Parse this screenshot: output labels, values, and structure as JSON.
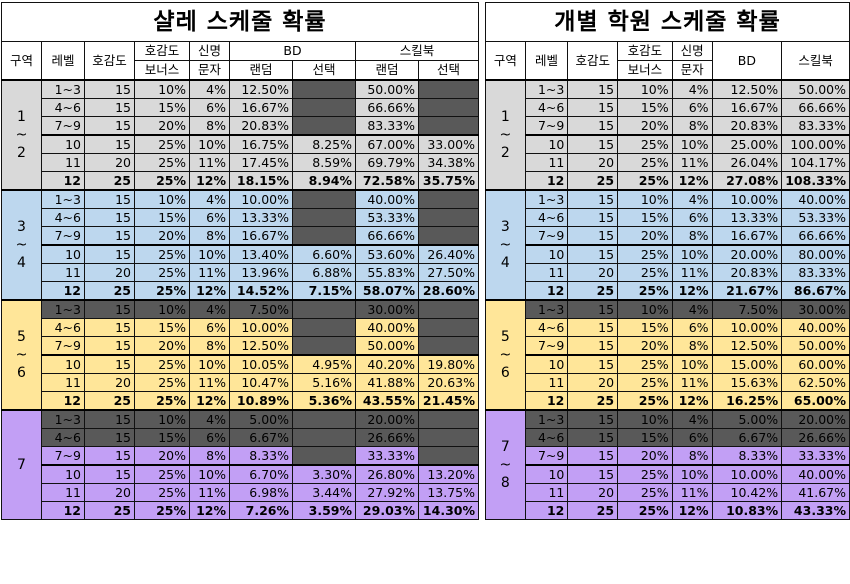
{
  "left": {
    "title": "샬레 스케줄 확률",
    "headers": {
      "zone": "구역",
      "level": "레벨",
      "affinity": "호감도",
      "bonus_top": "호감도",
      "bonus_bottom": "보너스",
      "msg_top": "신명",
      "msg_bottom": "문자",
      "bd": "BD",
      "skillbook": "스킬북",
      "random": "랜덤",
      "select": "선택",
      "random2": "랜덤",
      "select2": "선택"
    },
    "zones": [
      "1\n~\n2",
      "3\n~\n4",
      "5\n~\n6",
      "7"
    ],
    "rows": [
      [
        "1~3",
        "15",
        "10%",
        "4%",
        "12.50%",
        "",
        "50.00%",
        ""
      ],
      [
        "4~6",
        "15",
        "15%",
        "6%",
        "16.67%",
        "",
        "66.66%",
        ""
      ],
      [
        "7~9",
        "15",
        "20%",
        "8%",
        "20.83%",
        "",
        "83.33%",
        ""
      ],
      [
        "10",
        "15",
        "25%",
        "10%",
        "16.75%",
        "8.25%",
        "67.00%",
        "33.00%"
      ],
      [
        "11",
        "20",
        "25%",
        "11%",
        "17.45%",
        "8.59%",
        "69.79%",
        "34.38%"
      ],
      [
        "12",
        "25",
        "25%",
        "12%",
        "18.15%",
        "8.94%",
        "72.58%",
        "35.75%"
      ],
      [
        "1~3",
        "15",
        "10%",
        "4%",
        "10.00%",
        "",
        "40.00%",
        ""
      ],
      [
        "4~6",
        "15",
        "15%",
        "6%",
        "13.33%",
        "",
        "53.33%",
        ""
      ],
      [
        "7~9",
        "15",
        "20%",
        "8%",
        "16.67%",
        "",
        "66.66%",
        ""
      ],
      [
        "10",
        "15",
        "25%",
        "10%",
        "13.40%",
        "6.60%",
        "53.60%",
        "26.40%"
      ],
      [
        "11",
        "20",
        "25%",
        "11%",
        "13.96%",
        "6.88%",
        "55.83%",
        "27.50%"
      ],
      [
        "12",
        "25",
        "25%",
        "12%",
        "14.52%",
        "7.15%",
        "58.07%",
        "28.60%"
      ],
      [
        "1~3",
        "15",
        "10%",
        "4%",
        "7.50%",
        "",
        "30.00%",
        ""
      ],
      [
        "4~6",
        "15",
        "15%",
        "6%",
        "10.00%",
        "",
        "40.00%",
        ""
      ],
      [
        "7~9",
        "15",
        "20%",
        "8%",
        "12.50%",
        "",
        "50.00%",
        ""
      ],
      [
        "10",
        "15",
        "25%",
        "10%",
        "10.05%",
        "4.95%",
        "40.20%",
        "19.80%"
      ],
      [
        "11",
        "20",
        "25%",
        "11%",
        "10.47%",
        "5.16%",
        "41.88%",
        "20.63%"
      ],
      [
        "12",
        "25",
        "25%",
        "12%",
        "10.89%",
        "5.36%",
        "43.55%",
        "21.45%"
      ],
      [
        "1~3",
        "15",
        "10%",
        "4%",
        "5.00%",
        "",
        "20.00%",
        ""
      ],
      [
        "4~6",
        "15",
        "15%",
        "6%",
        "6.67%",
        "",
        "26.66%",
        ""
      ],
      [
        "7~9",
        "15",
        "20%",
        "8%",
        "8.33%",
        "",
        "33.33%",
        ""
      ],
      [
        "10",
        "15",
        "25%",
        "10%",
        "6.70%",
        "3.30%",
        "26.80%",
        "13.20%"
      ],
      [
        "11",
        "20",
        "25%",
        "11%",
        "6.98%",
        "3.44%",
        "27.92%",
        "13.75%"
      ],
      [
        "12",
        "25",
        "25%",
        "12%",
        "7.26%",
        "3.59%",
        "29.03%",
        "14.30%"
      ]
    ]
  },
  "right": {
    "title": "개별 학원 스케줄 확률",
    "headers": {
      "zone": "구역",
      "level": "레벨",
      "affinity": "호감도",
      "bonus_top": "호감도",
      "bonus_bottom": "보너스",
      "msg_top": "신명",
      "msg_bottom": "문자",
      "bd": "BD",
      "skillbook": "스킬북"
    },
    "zones": [
      "1\n~\n2",
      "3\n~\n4",
      "5\n~\n6",
      "7\n~\n8"
    ],
    "rows": [
      [
        "1~3",
        "15",
        "10%",
        "4%",
        "12.50%",
        "50.00%"
      ],
      [
        "4~6",
        "15",
        "15%",
        "6%",
        "16.67%",
        "66.66%"
      ],
      [
        "7~9",
        "15",
        "20%",
        "8%",
        "20.83%",
        "83.33%"
      ],
      [
        "10",
        "15",
        "25%",
        "10%",
        "25.00%",
        "100.00%"
      ],
      [
        "11",
        "20",
        "25%",
        "11%",
        "26.04%",
        "104.17%"
      ],
      [
        "12",
        "25",
        "25%",
        "12%",
        "27.08%",
        "108.33%"
      ],
      [
        "1~3",
        "15",
        "10%",
        "4%",
        "10.00%",
        "40.00%"
      ],
      [
        "4~6",
        "15",
        "15%",
        "6%",
        "13.33%",
        "53.33%"
      ],
      [
        "7~9",
        "15",
        "20%",
        "8%",
        "16.67%",
        "66.66%"
      ],
      [
        "10",
        "15",
        "25%",
        "10%",
        "20.00%",
        "80.00%"
      ],
      [
        "11",
        "20",
        "25%",
        "11%",
        "20.83%",
        "83.33%"
      ],
      [
        "12",
        "25",
        "25%",
        "12%",
        "21.67%",
        "86.67%"
      ],
      [
        "1~3",
        "15",
        "10%",
        "4%",
        "7.50%",
        "30.00%"
      ],
      [
        "4~6",
        "15",
        "15%",
        "6%",
        "10.00%",
        "40.00%"
      ],
      [
        "7~9",
        "15",
        "20%",
        "8%",
        "12.50%",
        "50.00%"
      ],
      [
        "10",
        "15",
        "25%",
        "10%",
        "15.00%",
        "60.00%"
      ],
      [
        "11",
        "20",
        "25%",
        "11%",
        "15.63%",
        "62.50%"
      ],
      [
        "12",
        "25",
        "25%",
        "12%",
        "16.25%",
        "65.00%"
      ],
      [
        "1~3",
        "15",
        "10%",
        "4%",
        "5.00%",
        "20.00%"
      ],
      [
        "4~6",
        "15",
        "15%",
        "6%",
        "6.67%",
        "26.66%"
      ],
      [
        "7~9",
        "15",
        "20%",
        "8%",
        "8.33%",
        "33.33%"
      ],
      [
        "10",
        "15",
        "25%",
        "10%",
        "10.00%",
        "40.00%"
      ],
      [
        "11",
        "20",
        "25%",
        "11%",
        "10.42%",
        "41.67%"
      ],
      [
        "12",
        "25",
        "25%",
        "12%",
        "10.83%",
        "43.33%"
      ]
    ]
  },
  "colors": {
    "gray": "#d9d9d9",
    "blue": "#bdd7ee",
    "yellow": "#ffe699",
    "purple": "#c29ff5",
    "dark": "#595959"
  }
}
